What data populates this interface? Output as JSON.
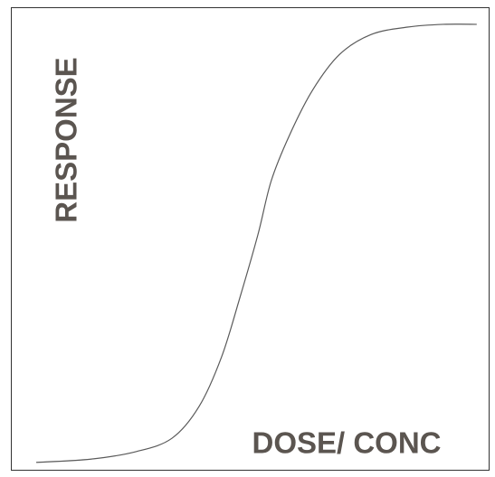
{
  "chart_data": {
    "type": "line",
    "x_label": "DOSE/ CONC",
    "y_label": "RESPONSE",
    "x": [
      5.3,
      16.7,
      26.1,
      33.7,
      39.4,
      44.1,
      47.9,
      51.7,
      54.5,
      58.3,
      63.1,
      68.8,
      75.4,
      83.0,
      90.5,
      97.5
    ],
    "series": [
      {
        "color": "#5a5a5a",
        "values": [
          1.6,
          2.3,
          3.9,
          6.8,
          13.7,
          24.4,
          37.1,
          50.8,
          62.5,
          72.3,
          82.0,
          89.8,
          94.1,
          95.7,
          96.3,
          96.3
        ]
      }
    ],
    "xlim": [
      0,
      100
    ],
    "ylim": [
      0,
      100
    ]
  }
}
